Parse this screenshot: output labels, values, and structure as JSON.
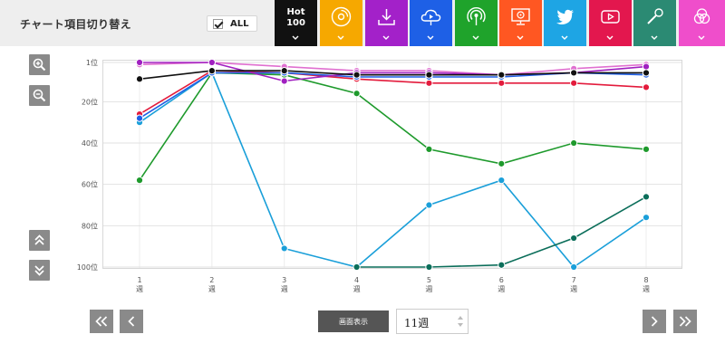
{
  "header": {
    "title": "チャート項目切り替え",
    "all_label": "ALL",
    "hot100_label_line1": "Hot",
    "hot100_label_line2": "100"
  },
  "toggles": [
    {
      "name": "hot100",
      "color": "#111111",
      "icon": "hot100-text"
    },
    {
      "name": "cd-sales",
      "color": "#f6a800",
      "icon": "cd-icon"
    },
    {
      "name": "downloads",
      "color": "#a321c9",
      "icon": "download-icon"
    },
    {
      "name": "streaming",
      "color": "#1e60e6",
      "icon": "cloud-play-icon"
    },
    {
      "name": "radio",
      "color": "#1fa32b",
      "icon": "radio-icon"
    },
    {
      "name": "lookup",
      "color": "#ff5722",
      "icon": "pc-lookup-icon"
    },
    {
      "name": "twitter",
      "color": "#1ea5e4",
      "icon": "twitter-icon"
    },
    {
      "name": "youtube",
      "color": "#e3174e",
      "icon": "youtube-icon"
    },
    {
      "name": "karaoke",
      "color": "#2b8a73",
      "icon": "microphone-icon"
    },
    {
      "name": "gyao",
      "color": "#ef4ecb",
      "icon": "venn-circles-icon"
    }
  ],
  "controls": {
    "display_button": "画面表示",
    "week_select_value": "11週"
  },
  "chart_data": {
    "type": "line",
    "x_tick_labels": [
      {
        "num": "1",
        "unit": "週"
      },
      {
        "num": "2",
        "unit": "週"
      },
      {
        "num": "3",
        "unit": "週"
      },
      {
        "num": "4",
        "unit": "週"
      },
      {
        "num": "5",
        "unit": "週"
      },
      {
        "num": "6",
        "unit": "週"
      },
      {
        "num": "7",
        "unit": "週"
      },
      {
        "num": "8",
        "unit": "週"
      }
    ],
    "y_ticks": [
      1,
      20,
      40,
      60,
      80,
      100
    ],
    "y_tick_labels": [
      "1位",
      "20位",
      "40位",
      "60位",
      "80位",
      "100位"
    ],
    "ylim": [
      1,
      100
    ],
    "y_inverted": true,
    "grid": true,
    "series": [
      {
        "color": "#1a9fd9",
        "values": [
          30,
          6,
          91,
          100,
          70,
          58,
          100,
          76
        ]
      },
      {
        "color": "#0b6e5a",
        "values": [
          null,
          null,
          null,
          100,
          100,
          99,
          86,
          66
        ]
      },
      {
        "color": "#1e9a2c",
        "values": [
          58,
          6,
          7,
          16,
          43,
          50,
          40,
          43
        ]
      },
      {
        "color": "#e31b3c",
        "values": [
          26,
          5,
          6,
          9,
          11,
          11,
          11,
          13
        ]
      },
      {
        "color": "#1e5fe6",
        "values": [
          28,
          6,
          6,
          8,
          8,
          8,
          6,
          7
        ]
      },
      {
        "color": "#e070d0",
        "values": [
          2,
          1,
          3,
          5,
          5,
          7,
          4,
          2
        ]
      },
      {
        "color": "#a020c0",
        "values": [
          1,
          1,
          10,
          6,
          6,
          7,
          6,
          3
        ]
      },
      {
        "color": "#111111",
        "values": [
          9,
          5,
          5,
          7,
          7,
          7,
          6,
          6
        ]
      }
    ]
  }
}
